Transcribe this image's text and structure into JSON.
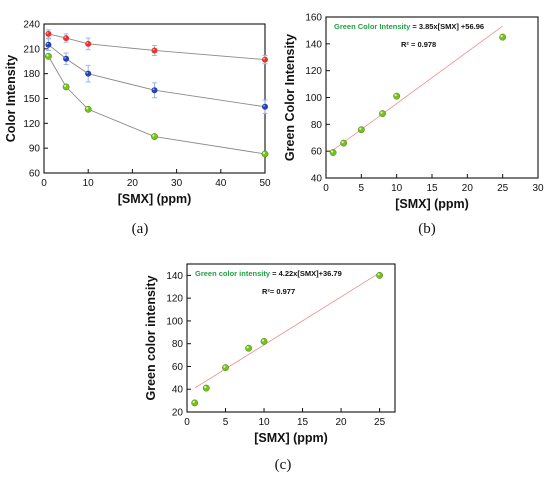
{
  "colors": {
    "red": "#e8332d",
    "blue": "#2540b3",
    "green": "#74c21a",
    "fit": "#f08c8c",
    "equation_green": "#22a045",
    "curve_gray": "#8a8a8a",
    "error_bar": "#9ab8e8"
  },
  "chart_data": [
    {
      "type": "line",
      "panel_label": "(a)",
      "xlabel": "[SMX] (ppm)",
      "ylabel": "Color Intensity",
      "xlim": [
        0,
        50
      ],
      "ylim": [
        60,
        240
      ],
      "xticks": [
        0,
        10,
        20,
        30,
        40,
        50
      ],
      "yticks": [
        60,
        90,
        120,
        150,
        180,
        210,
        240
      ],
      "x": [
        1,
        5,
        10,
        25,
        50
      ],
      "series": [
        {
          "color": "red",
          "values": [
            228,
            223,
            216,
            208,
            197
          ],
          "errors": [
            5,
            5,
            7,
            6,
            5
          ]
        },
        {
          "color": "blue",
          "values": [
            215,
            198,
            180,
            160,
            140
          ],
          "errors": [
            7,
            7,
            10,
            9,
            8
          ]
        },
        {
          "color": "green",
          "values": [
            201,
            164,
            137,
            104,
            83
          ],
          "errors": [
            2,
            2,
            2,
            2,
            2
          ]
        }
      ],
      "grid": false
    },
    {
      "type": "scatter",
      "panel_label": "(b)",
      "xlabel": "[SMX] (ppm)",
      "ylabel": "Green Color Intensity",
      "xlim": [
        0,
        30
      ],
      "ylim": [
        40,
        160
      ],
      "xticks": [
        0,
        5,
        10,
        15,
        20,
        25,
        30
      ],
      "yticks": [
        40,
        60,
        80,
        100,
        120,
        140,
        160
      ],
      "x": [
        1,
        2.5,
        5,
        8,
        10,
        25
      ],
      "values": [
        59,
        66,
        76,
        88,
        101,
        145
      ],
      "equation": "Green Color Intensity = 3.85x[SMX] +56.96",
      "equation_prefix": "Green Color Intensity",
      "equation_rest": " = 3.85x[SMX] +56.96",
      "r2": "R² = 0.978",
      "fit": {
        "slope": 3.85,
        "intercept": 56.96,
        "x_range": [
          1,
          25
        ]
      },
      "grid": false
    },
    {
      "type": "scatter",
      "panel_label": "(c)",
      "xlabel": "[SMX] (ppm)",
      "ylabel": "Green color intensity",
      "xlim": [
        0,
        27
      ],
      "ylim": [
        20,
        150
      ],
      "xticks": [
        0,
        5,
        10,
        15,
        20,
        25
      ],
      "yticks": [
        20,
        40,
        60,
        80,
        100,
        120,
        140
      ],
      "x": [
        1,
        2.5,
        5,
        8,
        10,
        25
      ],
      "values": [
        28,
        41,
        59,
        76,
        82,
        140
      ],
      "equation": "Green color intensity = 4.22x[SMX]+36.79",
      "equation_prefix": "Green color intensity",
      "equation_rest": " = 4.22x[SMX]+36.79",
      "r2": "R²= 0.977",
      "fit": {
        "slope": 4.22,
        "intercept": 36.79,
        "x_range": [
          1,
          25
        ]
      },
      "grid": false
    }
  ]
}
